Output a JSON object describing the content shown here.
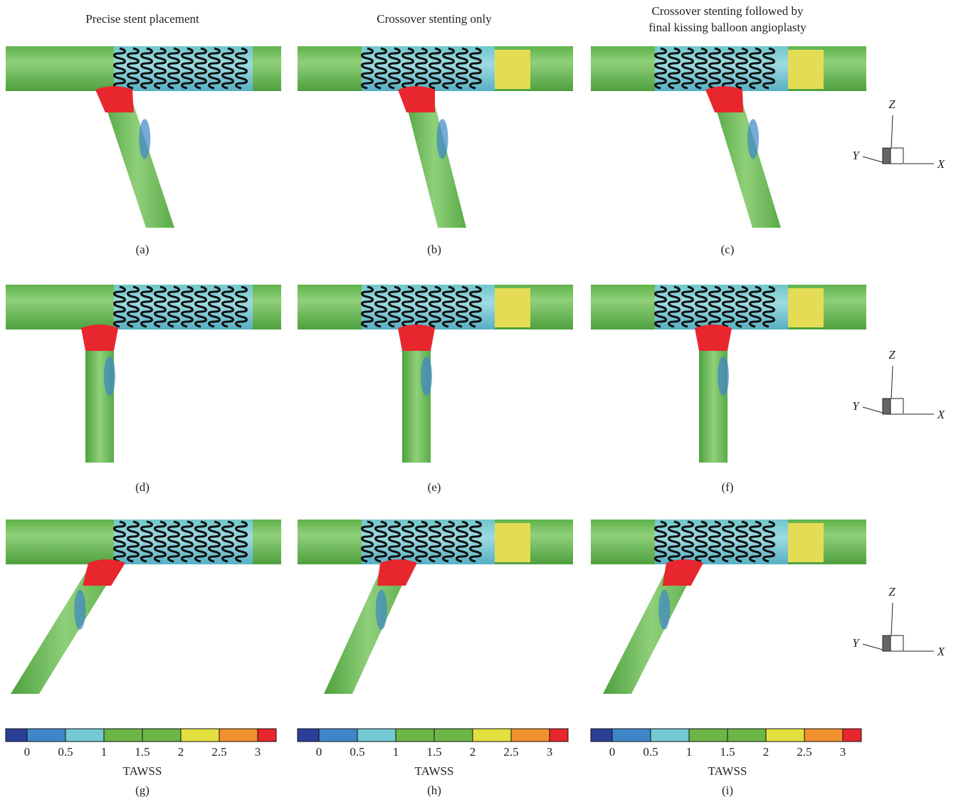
{
  "column_titles": [
    [
      "Precise stent placement"
    ],
    [
      "Crossover stenting only"
    ],
    [
      "Crossover stenting followed by",
      "final kissing balloon angioplasty"
    ]
  ],
  "panel_labels": [
    "(a)",
    "(b)",
    "(c)",
    "(d)",
    "(e)",
    "(f)",
    "(g)",
    "(h)",
    "(i)"
  ],
  "triads": [
    {
      "z": "Z",
      "y": "Y",
      "x": "X"
    },
    {
      "z": "Z",
      "y": "Y",
      "x": "X"
    },
    {
      "z": "Z",
      "y": "Y",
      "x": "X"
    }
  ],
  "colorbars": [
    {
      "ticks": [
        0,
        0.5,
        1,
        1.5,
        2,
        2.5,
        3
      ],
      "label": "TAWSS"
    },
    {
      "ticks": [
        0,
        0.5,
        1,
        1.5,
        2,
        2.5,
        3
      ],
      "label": "TAWSS"
    },
    {
      "ticks": [
        0,
        0.5,
        1,
        1.5,
        2,
        2.5,
        3
      ],
      "label": "TAWSS"
    }
  ],
  "colorbar_colors": [
    "#2b3f97",
    "#3f86c9",
    "#74c9d2",
    "#6cb547",
    "#6cb547",
    "#e2e03e",
    "#f0902e",
    "#e8262d"
  ]
}
